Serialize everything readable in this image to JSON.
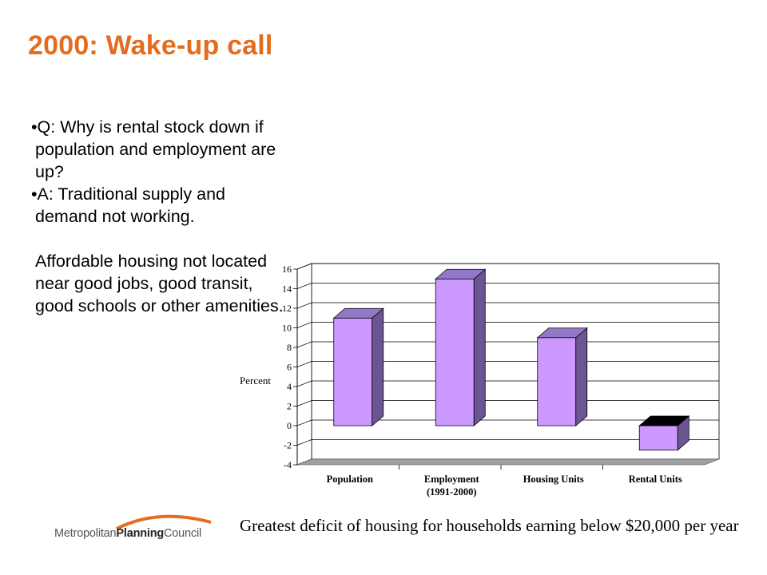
{
  "slide": {
    "title": "2000: Wake-up call",
    "question": "Q: Why is rental stock down if population and employment are up?",
    "answer": "A: Traditional supply and demand not working.",
    "note": "Affordable housing not located near good jobs, good transit, good schools or other amenities.",
    "bullet": "•",
    "caption": "Greatest deficit of housing for households earning below $20,000 per year"
  },
  "logo": {
    "part1": "Metropolitan",
    "part2": "Planning",
    "part3": "Council",
    "arc_color": "#e36c1f"
  },
  "colors": {
    "title": "#e36c1f",
    "bar_front": "#cc99ff",
    "bar_side": "#6b5592",
    "bar_top": "#9478c8",
    "floor": "#a0a0a0"
  },
  "chart_data": {
    "type": "bar",
    "categories": [
      "Population",
      "Employment",
      "Housing Units",
      "Rental Units"
    ],
    "category_sublabels": [
      "",
      "(1991-2000)",
      "",
      ""
    ],
    "values": [
      11,
      15,
      9,
      -2.5
    ],
    "ylabel": "Percent",
    "xlabel": "",
    "ylim": [
      -4,
      16
    ],
    "yticks": [
      -4,
      -2,
      0,
      2,
      4,
      6,
      8,
      10,
      12,
      14,
      16
    ],
    "grid": true,
    "legend": "none",
    "style": "3d"
  }
}
